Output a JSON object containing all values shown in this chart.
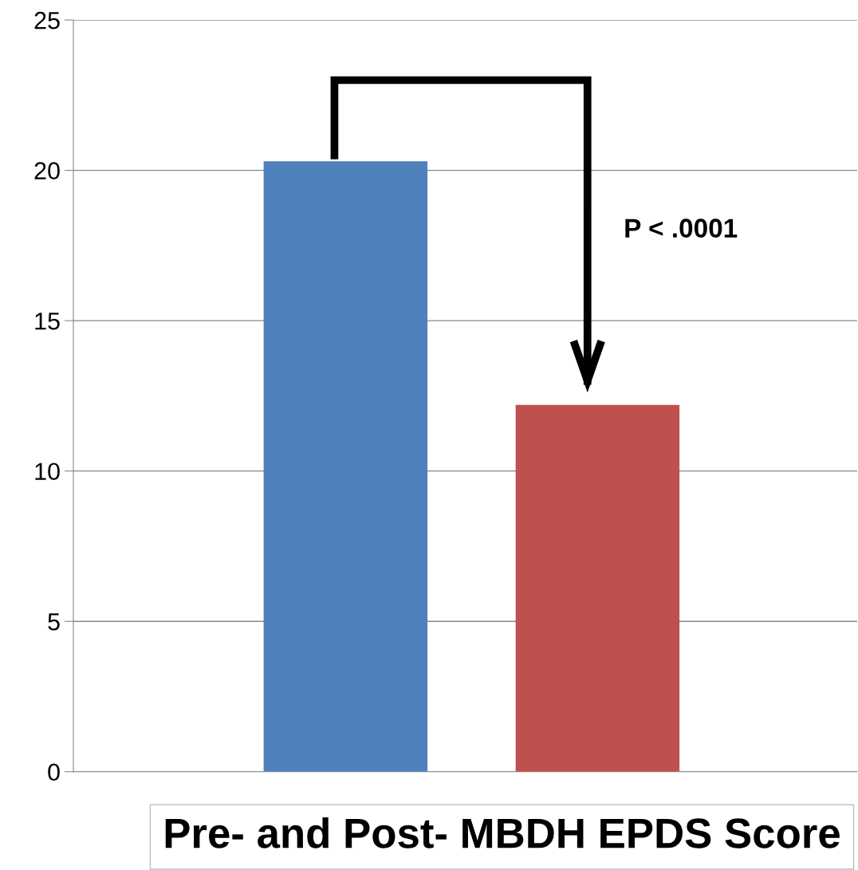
{
  "chart_data": {
    "type": "bar",
    "xlabel": "Pre- and Post- MBDH EPDS Score",
    "categories": [
      null,
      null
    ],
    "values": [
      20.3,
      12.2
    ],
    "colors": [
      "#4f81bd",
      "#c0504d"
    ],
    "ylim": [
      0,
      25
    ],
    "yticks": [
      0,
      5,
      10,
      15,
      20,
      25
    ],
    "grid": "y",
    "annotations": [
      "P < .0001"
    ]
  }
}
